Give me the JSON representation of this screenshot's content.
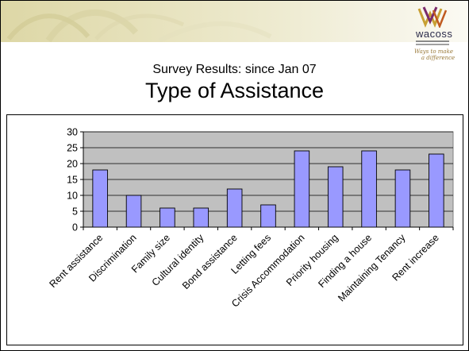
{
  "header": {
    "subtitle": "Survey Results: since Jan 07",
    "title": "Type of Assistance"
  },
  "logo": {
    "name": "wacoss",
    "tagline": "Ways to make\n    a difference"
  },
  "colors": {
    "bar_fill": "#9999ff",
    "plot_bg": "#c0c0c0",
    "header_band": "#ddd7a6"
  },
  "chart_data": {
    "type": "bar",
    "categories": [
      "Rent assistance",
      "Discrimination",
      "Family size",
      "Cultural identity",
      "Bond assistance",
      "Letting fees",
      "Crisis Accommodation",
      "Priority housing",
      "Finding a house",
      "Maintaining Tenancy",
      "Rent increase"
    ],
    "values": [
      18,
      10,
      6,
      6,
      12,
      7,
      24,
      19,
      24,
      18,
      23
    ],
    "title": "",
    "xlabel": "",
    "ylabel": "",
    "ylim": [
      0,
      30
    ],
    "yticks": [
      0,
      5,
      10,
      15,
      20,
      25,
      30
    ],
    "grid": true,
    "legend": "none"
  }
}
